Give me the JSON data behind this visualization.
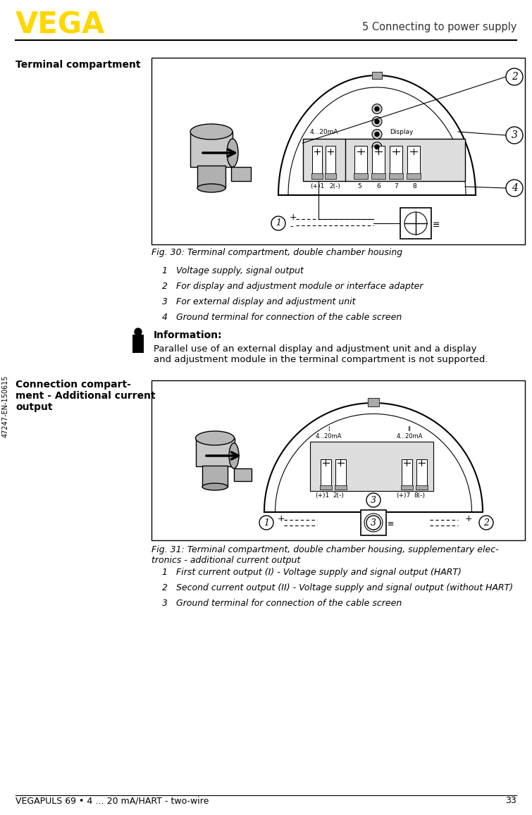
{
  "page_width": 7.55,
  "page_height": 11.57,
  "bg_color": "#ffffff",
  "header": {
    "vega_text": "VEGA",
    "vega_color": "#FFD700",
    "vega_fontsize": 30,
    "vega_weight": "bold",
    "section_title": "5 Connecting to power supply",
    "section_fontsize": 10.5
  },
  "footer": {
    "left_text": "VEGAPULS 69 • 4 … 20 mA/HART - two-wire",
    "right_text": "33",
    "fontsize": 9
  },
  "sidebar_text": "47247-EN-150615",
  "fig30": {
    "caption": "Fig. 30: Terminal compartment, double chamber housing",
    "items": [
      "1   Voltage supply, signal output",
      "2   For display and adjustment module or interface adapter",
      "3   For external display and adjustment unit",
      "4   Ground terminal for connection of the cable screen"
    ]
  },
  "info_title": "Information:",
  "info_text": "Parallel use of an external display and adjustment unit and a display\nand adjustment module in the terminal compartment is not supported.",
  "section1_label": "Terminal compartment",
  "section2_label": "Connection compart-\nment - Additional current\noutput",
  "fig31": {
    "caption": "Fig. 31: Terminal compartment, double chamber housing, supplementary elec-\ntronics - additional current output",
    "items": [
      "1   First current output (I) - Voltage supply and signal output (HART)",
      "2   Second current output (II) - Voltage supply and signal output (without HART)",
      "3   Ground terminal for connection of the cable screen"
    ]
  }
}
